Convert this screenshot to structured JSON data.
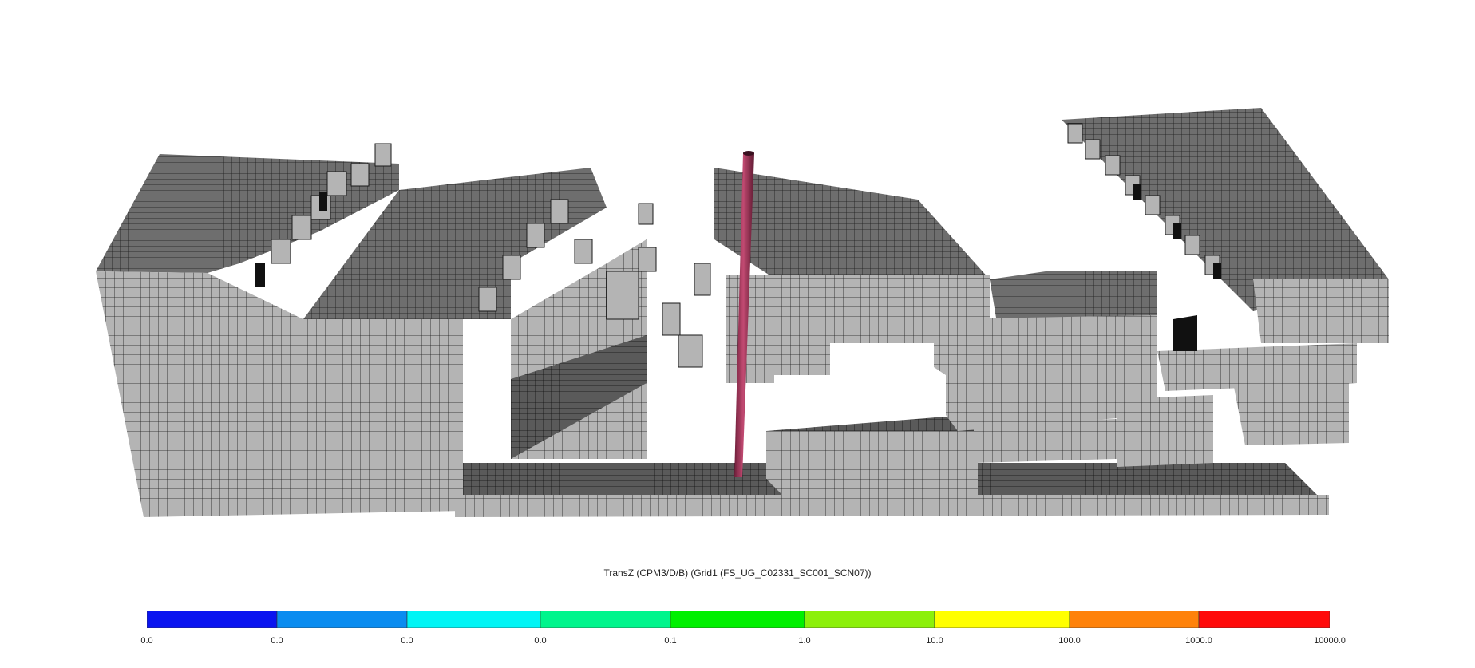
{
  "viewer": {
    "property_title": "TransZ (CPM3/D/B) (Grid1 (FS_UG_C02331_SC001_SCN07))"
  },
  "colorbar": {
    "colors": [
      "#0a14f0",
      "#0a8cf0",
      "#00f5f5",
      "#00f58c",
      "#00f000",
      "#8cf00a",
      "#ffff00",
      "#ff820a",
      "#ff0a0a"
    ],
    "tick_labels": [
      "0.0",
      "0.0",
      "0.0",
      "0.0",
      "0.1",
      "1.0",
      "10.0",
      "100.0",
      "1000.0",
      "10000.0"
    ]
  },
  "model": {
    "top_face_color": "#6e6e6e",
    "side_face_color": "#b4b4b4",
    "grid_line_color": "#1a1a1a",
    "well_color": "#a33a5c"
  }
}
